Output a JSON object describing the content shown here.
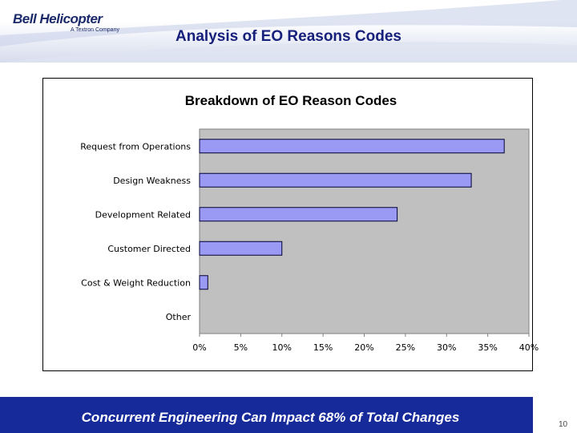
{
  "header": {
    "logo_text": "Bell Helicopter",
    "logo_subtext": "A Textron Company",
    "title": "Analysis of EO Reasons Codes"
  },
  "footer": {
    "text": "Concurrent  Engineering Can Impact 68% of Total Changes",
    "page_number": "10"
  },
  "colors": {
    "footer_bg": "#162a9a",
    "bar_fill": "#9a9af5",
    "plot_bg": "#c0c0c0"
  },
  "chart_data": {
    "type": "bar",
    "orientation": "horizontal",
    "title": "Breakdown of EO Reason Codes",
    "categories": [
      "Request from Operations",
      "Design Weakness",
      "Development Related",
      "Customer Directed",
      "Cost & Weight Reduction",
      "Other"
    ],
    "values": [
      0.37,
      0.33,
      0.24,
      0.1,
      0.01,
      0.0
    ],
    "xlim": [
      0,
      0.4
    ],
    "x_ticks": [
      0,
      0.05,
      0.1,
      0.15,
      0.2,
      0.25,
      0.3,
      0.35,
      0.4
    ],
    "x_tick_labels": [
      "0%",
      "5%",
      "10%",
      "15%",
      "20%",
      "25%",
      "30%",
      "35%",
      "40%"
    ],
    "grid": false,
    "legend": "none"
  }
}
